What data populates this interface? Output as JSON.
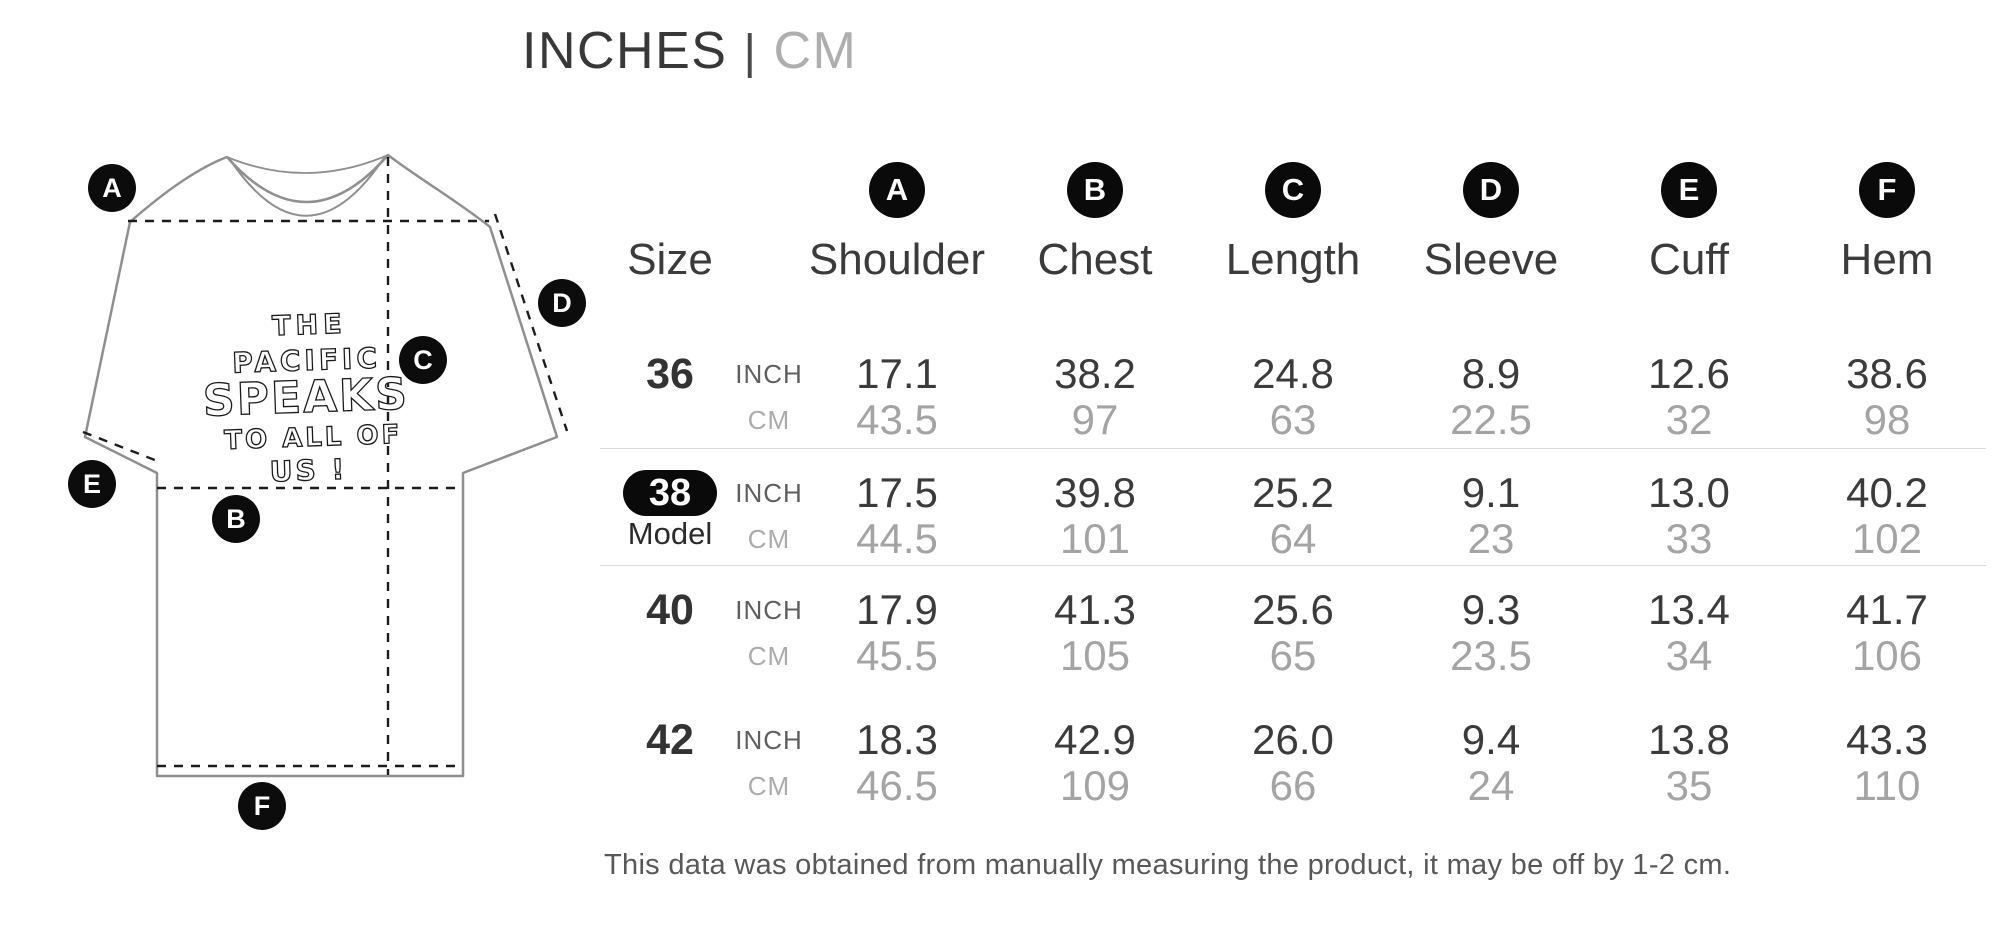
{
  "title": {
    "primary": "INCHES",
    "divider": "|",
    "secondary": "CM"
  },
  "diagram": {
    "graphic_lines": [
      "THE",
      "PACIFIC",
      "SPEAKS",
      "TO ALL OF",
      "US !"
    ]
  },
  "table": {
    "size_header": "Size",
    "unit_labels": {
      "inch": "INCH",
      "cm": "CM"
    },
    "columns": [
      {
        "letter": "A",
        "label": "Shoulder"
      },
      {
        "letter": "B",
        "label": "Chest"
      },
      {
        "letter": "C",
        "label": "Length"
      },
      {
        "letter": "D",
        "label": "Sleeve"
      },
      {
        "letter": "E",
        "label": "Cuff"
      },
      {
        "letter": "F",
        "label": "Hem"
      }
    ],
    "rows": [
      {
        "size": "36",
        "model": false,
        "model_label": "",
        "inch": [
          "17.1",
          "38.2",
          "24.8",
          "8.9",
          "12.6",
          "38.6"
        ],
        "cm": [
          "43.5",
          "97",
          "63",
          "22.5",
          "32",
          "98"
        ]
      },
      {
        "size": "38",
        "model": true,
        "model_label": "Model",
        "inch": [
          "17.5",
          "39.8",
          "25.2",
          "9.1",
          "13.0",
          "40.2"
        ],
        "cm": [
          "44.5",
          "101",
          "64",
          "23",
          "33",
          "102"
        ]
      },
      {
        "size": "40",
        "model": false,
        "model_label": "",
        "inch": [
          "17.9",
          "41.3",
          "25.6",
          "9.3",
          "13.4",
          "41.7"
        ],
        "cm": [
          "45.5",
          "105",
          "65",
          "23.5",
          "34",
          "106"
        ]
      },
      {
        "size": "42",
        "model": false,
        "model_label": "",
        "inch": [
          "18.3",
          "42.9",
          "26.0",
          "9.4",
          "13.8",
          "43.3"
        ],
        "cm": [
          "46.5",
          "109",
          "66",
          "24",
          "35",
          "110"
        ]
      }
    ]
  },
  "footer": {
    "note": "This data was obtained from manually measuring the product, it may be off by 1-2 cm."
  },
  "colors": {
    "text_dark": "#3b3b3b",
    "text_gray": "#a4a4a4",
    "badge_bg": "#0a0a0a",
    "separator": "#dcdcdc",
    "shirt_outline": "#8f8f8f",
    "dash_line": "#1c1c1c"
  }
}
